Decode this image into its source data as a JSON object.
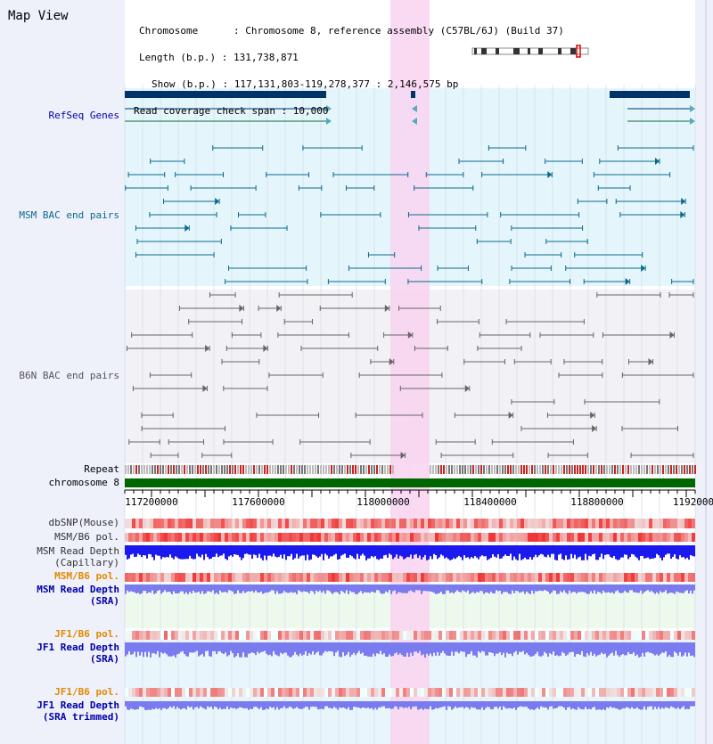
{
  "title": "Map View",
  "header": {
    "lines": [
      "Chromosome      : Chromosome 8, reference assembly (C57BL/6J) (Build 37)",
      "Length (b.p.) : 131,738,871",
      "Show (b.p.) : 117,131,803-119,278,377 : 2,146,575 bp",
      "Read coverage check span : 10,000"
    ]
  },
  "tracks": {
    "refseq": "RefSeq Genes",
    "msm_bac": "MSM BAC end pairs",
    "b6n_bac": "B6N BAC end pairs",
    "repeat": "Repeat",
    "chromosome": "chromosome 8",
    "dbsnp": "dbSNP(Mouse)",
    "msm_b6_pol_1": "MSM/B6 pol.",
    "msm_depth_cap_1": "MSM Read Depth",
    "msm_depth_cap_2": "(Capillary)",
    "msm_b6_pol_2": "MSM/B6 pol.",
    "msm_depth_sra_1": "MSM Read Depth",
    "msm_depth_sra_2": "(SRA)",
    "jf1_b6_pol_1": "JF1/B6 pol.",
    "jf1_depth_sra_1": "JF1 Read Depth",
    "jf1_depth_sra_2": "(SRA)",
    "jf1_b6_pol_2": "JF1/B6 pol.",
    "jf1_depth_trim_1": "JF1 Read Depth",
    "jf1_depth_trim_2": "(SRA trimmed)"
  },
  "axis": {
    "ticks": [
      "117200000",
      "117600000",
      "118000000",
      "118400000",
      "118800000",
      "1192000"
    ]
  },
  "colors": {
    "refseq": "#003366",
    "msm": "#0a6a8c",
    "b6n": "#666666",
    "highlight": "#f9d4f0",
    "chromosome": "#006600",
    "snp": "#e03030",
    "depth_cap": "#1a1aee",
    "depth_sra": "#7b7bf0",
    "pol_label": "#e08a00",
    "label_blue": "#0000aa"
  }
}
